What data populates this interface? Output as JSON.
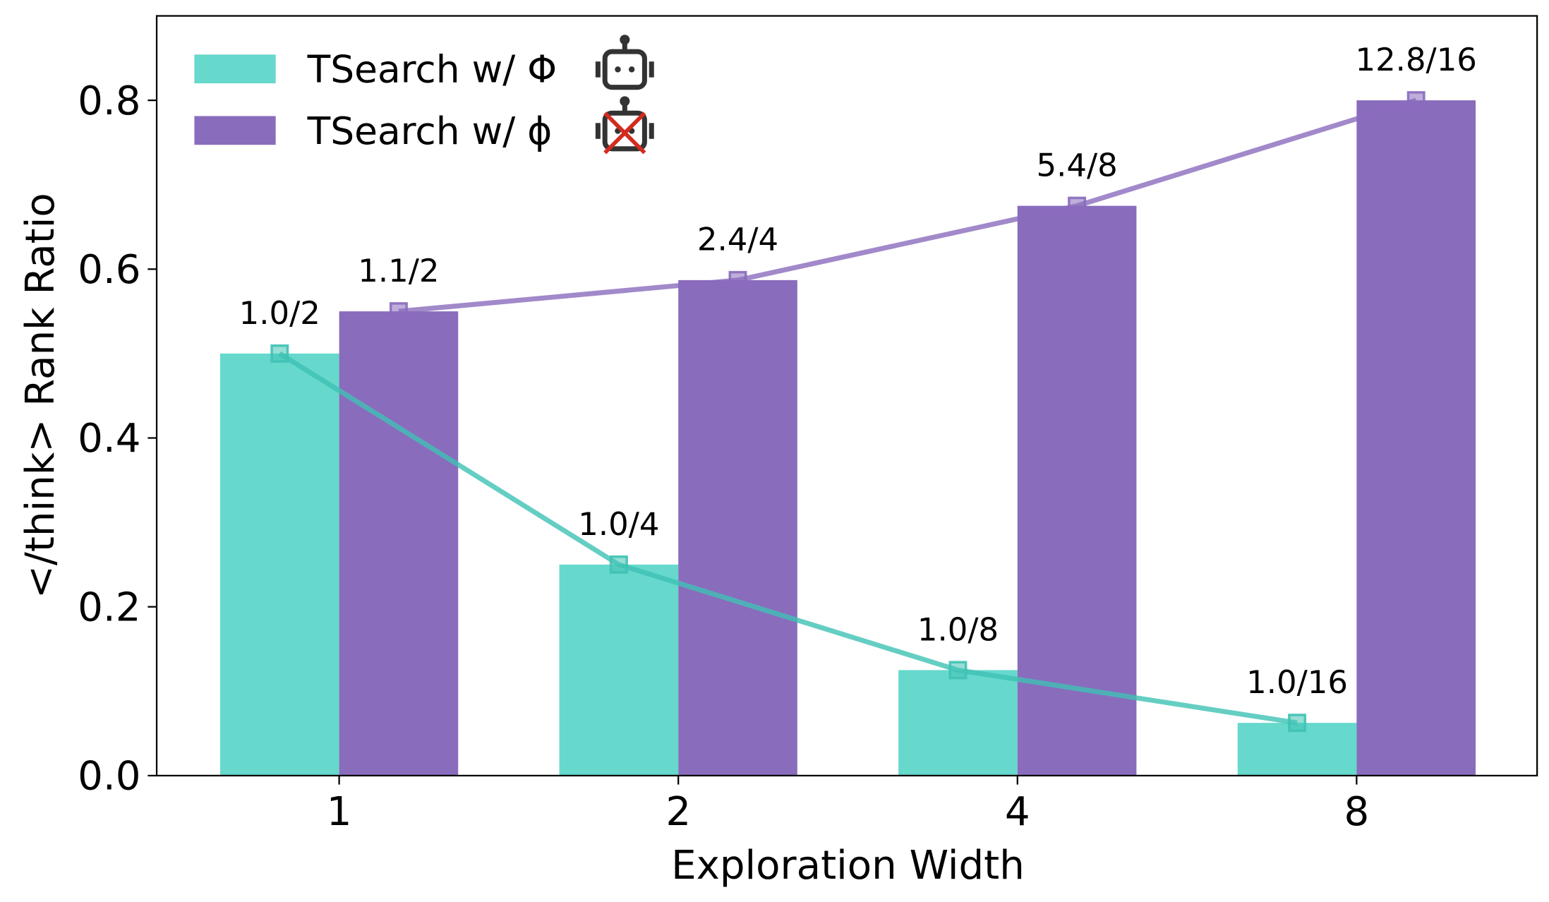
{
  "chart_data": {
    "type": "bar",
    "x_label": "Exploration Width",
    "y_label": "</think> Rank Ratio",
    "categories": [
      "1",
      "2",
      "4",
      "8"
    ],
    "ylim": [
      0,
      0.9
    ],
    "yticks": [
      {
        "value": 0,
        "label": "0.0"
      },
      0.2,
      0.4,
      0.6,
      0.8
    ],
    "series": [
      {
        "name": "TSearch w/ Φ",
        "color": "#66d8cc",
        "line_color": "#3fc2b4",
        "values": [
          0.5,
          0.25,
          0.125,
          0.0625
        ],
        "value_labels": [
          "1.0/2",
          "1.0/4",
          "1.0/8",
          "1.0/16"
        ]
      },
      {
        "name": "TSearch w/ ϕ",
        "color": "#8a6cbd",
        "line_color": "#8a6cbd",
        "values": [
          0.55,
          0.587,
          0.675,
          0.8
        ],
        "value_labels": [
          "1.1/2",
          "2.4/4",
          "5.4/8",
          "12.8/16"
        ]
      }
    ],
    "legend": "upper left"
  }
}
